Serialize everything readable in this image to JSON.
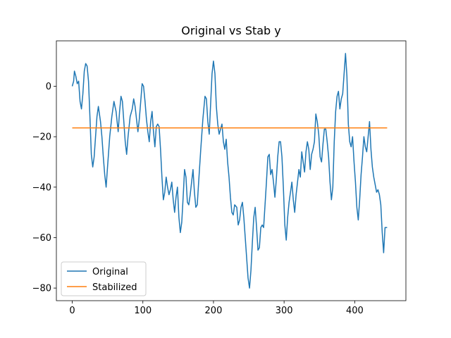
{
  "chart_data": {
    "type": "line",
    "title": "Original vs Stab y",
    "xlabel": "",
    "ylabel": "",
    "xlim": [
      -22.5,
      472.5
    ],
    "ylim": [
      -85,
      18
    ],
    "xticks": [
      0,
      100,
      200,
      300,
      400
    ],
    "yticks": [
      -80,
      -60,
      -40,
      -20,
      0
    ],
    "grid": false,
    "legend_position": "lower-left",
    "series": [
      {
        "name": "Original",
        "color": "#1f77b4",
        "points": [
          [
            0,
            0
          ],
          [
            2,
            2
          ],
          [
            3,
            6
          ],
          [
            5,
            4
          ],
          [
            7,
            1
          ],
          [
            9,
            2
          ],
          [
            11,
            -6
          ],
          [
            13,
            -9
          ],
          [
            15,
            -3
          ],
          [
            17,
            6
          ],
          [
            19,
            9
          ],
          [
            21,
            8
          ],
          [
            23,
            2
          ],
          [
            25,
            -12
          ],
          [
            27,
            -27
          ],
          [
            29,
            -32
          ],
          [
            31,
            -28
          ],
          [
            33,
            -20
          ],
          [
            35,
            -12
          ],
          [
            37,
            -8
          ],
          [
            40,
            -14
          ],
          [
            42,
            -20
          ],
          [
            44,
            -28
          ],
          [
            46,
            -35
          ],
          [
            48,
            -40
          ],
          [
            50,
            -32
          ],
          [
            53,
            -20
          ],
          [
            56,
            -12
          ],
          [
            59,
            -6
          ],
          [
            62,
            -10
          ],
          [
            65,
            -18
          ],
          [
            67,
            -10
          ],
          [
            69,
            -4
          ],
          [
            71,
            -6
          ],
          [
            73,
            -14
          ],
          [
            75,
            -22
          ],
          [
            77,
            -27
          ],
          [
            79,
            -20
          ],
          [
            82,
            -12
          ],
          [
            85,
            -9
          ],
          [
            87,
            -5
          ],
          [
            89,
            -8
          ],
          [
            91,
            -13
          ],
          [
            93,
            -18
          ],
          [
            95,
            -13
          ],
          [
            97,
            -6
          ],
          [
            99,
            1
          ],
          [
            101,
            0
          ],
          [
            103,
            -6
          ],
          [
            105,
            -13
          ],
          [
            107,
            -18
          ],
          [
            109,
            -22
          ],
          [
            111,
            -14
          ],
          [
            113,
            -10
          ],
          [
            115,
            -18
          ],
          [
            117,
            -24
          ],
          [
            119,
            -16
          ],
          [
            121,
            -15
          ],
          [
            123,
            -16
          ],
          [
            125,
            -25
          ],
          [
            127,
            -36
          ],
          [
            129,
            -45
          ],
          [
            131,
            -42
          ],
          [
            133,
            -36
          ],
          [
            135,
            -40
          ],
          [
            137,
            -43
          ],
          [
            139,
            -41
          ],
          [
            141,
            -38
          ],
          [
            143,
            -45
          ],
          [
            145,
            -50
          ],
          [
            147,
            -44
          ],
          [
            149,
            -40
          ],
          [
            151,
            -52
          ],
          [
            153,
            -58
          ],
          [
            155,
            -54
          ],
          [
            157,
            -44
          ],
          [
            159,
            -33
          ],
          [
            161,
            -36
          ],
          [
            163,
            -46
          ],
          [
            165,
            -47
          ],
          [
            167,
            -43
          ],
          [
            169,
            -38
          ],
          [
            171,
            -33
          ],
          [
            173,
            -42
          ],
          [
            175,
            -48
          ],
          [
            177,
            -47
          ],
          [
            179,
            -38
          ],
          [
            182,
            -25
          ],
          [
            185,
            -13
          ],
          [
            188,
            -4
          ],
          [
            190,
            -5
          ],
          [
            192,
            -14
          ],
          [
            194,
            -19
          ],
          [
            196,
            -7
          ],
          [
            198,
            5
          ],
          [
            200,
            10
          ],
          [
            202,
            5
          ],
          [
            204,
            -8
          ],
          [
            206,
            -15
          ],
          [
            208,
            -19
          ],
          [
            210,
            -17
          ],
          [
            212,
            -15
          ],
          [
            214,
            -22
          ],
          [
            216,
            -25
          ],
          [
            218,
            -21
          ],
          [
            220,
            -30
          ],
          [
            222,
            -36
          ],
          [
            224,
            -44
          ],
          [
            226,
            -50
          ],
          [
            228,
            -51
          ],
          [
            230,
            -47
          ],
          [
            233,
            -48
          ],
          [
            235,
            -55
          ],
          [
            237,
            -53
          ],
          [
            239,
            -48
          ],
          [
            241,
            -46
          ],
          [
            243,
            -52
          ],
          [
            245,
            -60
          ],
          [
            247,
            -68
          ],
          [
            249,
            -76
          ],
          [
            251,
            -80
          ],
          [
            253,
            -73
          ],
          [
            255,
            -62
          ],
          [
            257,
            -52
          ],
          [
            259,
            -48
          ],
          [
            261,
            -56
          ],
          [
            263,
            -65
          ],
          [
            265,
            -64
          ],
          [
            267,
            -56
          ],
          [
            269,
            -55
          ],
          [
            271,
            -56
          ],
          [
            273,
            -47
          ],
          [
            275,
            -38
          ],
          [
            277,
            -28
          ],
          [
            279,
            -27
          ],
          [
            281,
            -35
          ],
          [
            283,
            -33
          ],
          [
            285,
            -38
          ],
          [
            287,
            -44
          ],
          [
            289,
            -37
          ],
          [
            291,
            -28
          ],
          [
            293,
            -22
          ],
          [
            295,
            -22
          ],
          [
            297,
            -28
          ],
          [
            299,
            -40
          ],
          [
            301,
            -55
          ],
          [
            303,
            -61
          ],
          [
            305,
            -52
          ],
          [
            307,
            -46
          ],
          [
            309,
            -42
          ],
          [
            311,
            -38
          ],
          [
            313,
            -45
          ],
          [
            315,
            -50
          ],
          [
            317,
            -43
          ],
          [
            319,
            -38
          ],
          [
            321,
            -33
          ],
          [
            323,
            -36
          ],
          [
            325,
            -26
          ],
          [
            327,
            -30
          ],
          [
            329,
            -34
          ],
          [
            331,
            -26
          ],
          [
            333,
            -22
          ],
          [
            335,
            -25
          ],
          [
            337,
            -33
          ],
          [
            339,
            -27
          ],
          [
            341,
            -25
          ],
          [
            343,
            -22
          ],
          [
            345,
            -11
          ],
          [
            347,
            -14
          ],
          [
            349,
            -19
          ],
          [
            351,
            -28
          ],
          [
            353,
            -30
          ],
          [
            355,
            -23
          ],
          [
            357,
            -17
          ],
          [
            359,
            -17
          ],
          [
            361,
            -22
          ],
          [
            363,
            -28
          ],
          [
            365,
            -38
          ],
          [
            367,
            -45
          ],
          [
            369,
            -40
          ],
          [
            371,
            -22
          ],
          [
            373,
            -10
          ],
          [
            375,
            -4
          ],
          [
            377,
            -2
          ],
          [
            379,
            -9
          ],
          [
            381,
            -5
          ],
          [
            383,
            -3
          ],
          [
            385,
            5
          ],
          [
            387,
            13
          ],
          [
            389,
            4
          ],
          [
            391,
            -15
          ],
          [
            393,
            -22
          ],
          [
            395,
            -24
          ],
          [
            397,
            -20
          ],
          [
            399,
            -30
          ],
          [
            401,
            -38
          ],
          [
            403,
            -48
          ],
          [
            405,
            -53
          ],
          [
            407,
            -45
          ],
          [
            409,
            -35
          ],
          [
            411,
            -28
          ],
          [
            413,
            -20
          ],
          [
            415,
            -24
          ],
          [
            417,
            -26
          ],
          [
            419,
            -20
          ],
          [
            421,
            -14
          ],
          [
            423,
            -25
          ],
          [
            425,
            -32
          ],
          [
            427,
            -36
          ],
          [
            429,
            -39
          ],
          [
            431,
            -42
          ],
          [
            433,
            -41
          ],
          [
            435,
            -43
          ],
          [
            437,
            -47
          ],
          [
            439,
            -58
          ],
          [
            441,
            -66
          ],
          [
            443,
            -56
          ],
          [
            446,
            -56
          ]
        ]
      },
      {
        "name": "Stabilized",
        "color": "#ff7f0e",
        "points": [
          [
            0,
            -16.5
          ],
          [
            446,
            -16.5
          ]
        ]
      }
    ]
  }
}
